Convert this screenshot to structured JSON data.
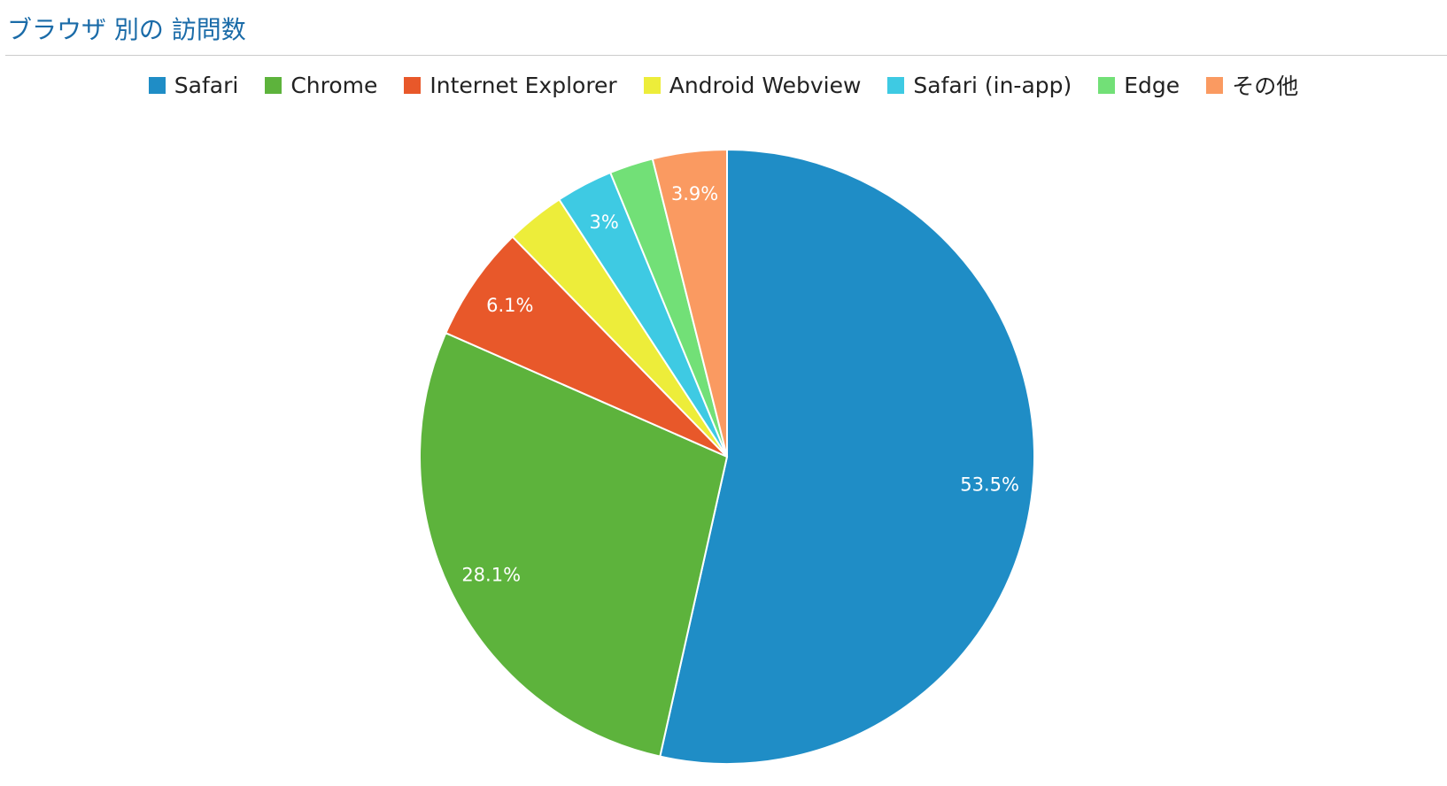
{
  "chart_data": {
    "type": "pie",
    "title": "ブラウザ 別の 訪問数",
    "categories": [
      "Safari",
      "Chrome",
      "Internet Explorer",
      "Android Webview",
      "Safari (in-app)",
      "Edge",
      "その他"
    ],
    "values": [
      53.5,
      28.1,
      6.1,
      3.1,
      3,
      2.3,
      3.9
    ],
    "value_labels": [
      "53.5%",
      "28.1%",
      "6.1%",
      null,
      "3%",
      null,
      "3.9%"
    ],
    "colors": [
      "#1f8dc6",
      "#5db33c",
      "#e8582a",
      "#eded3a",
      "#3ecae3",
      "#72e077",
      "#fa9a61"
    ],
    "legend": "top"
  }
}
